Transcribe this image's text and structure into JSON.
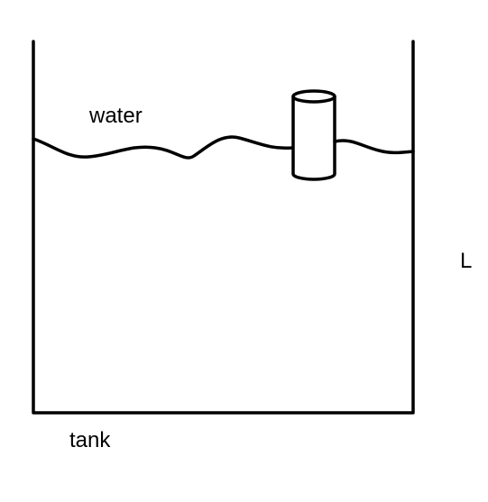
{
  "labels": {
    "water": "water",
    "tank": "tank",
    "length": "L"
  },
  "colors": {
    "stroke": "#000000",
    "background": "#ffffff"
  }
}
